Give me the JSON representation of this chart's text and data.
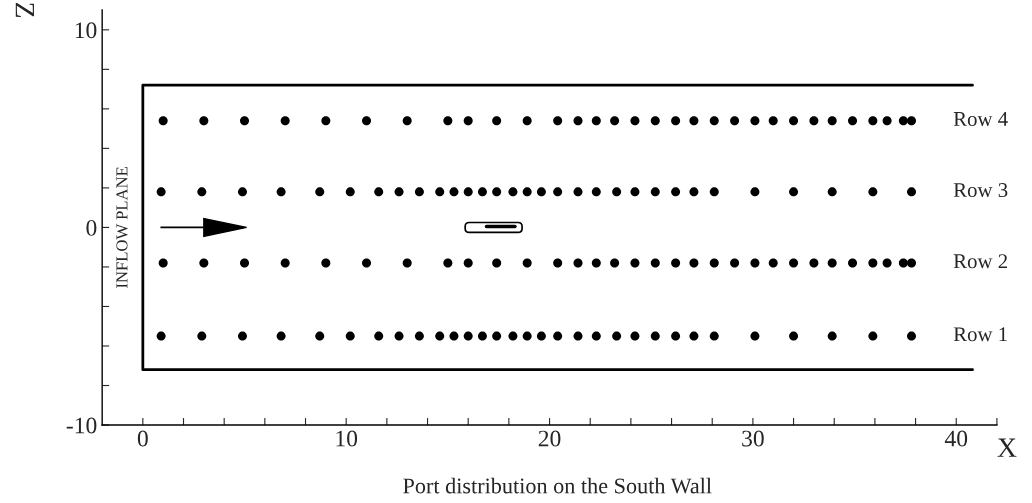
{
  "chart_data": {
    "type": "scatter",
    "xlabel": "X",
    "ylabel": "Z",
    "annotations": [
      "Port distribution on the South Wall",
      {
        "text": "INFLOW PLANE",
        "x": 0,
        "y": 0
      }
    ],
    "series": [
      {
        "name": "Row 4",
        "color": "#000000",
        "x": [
          1,
          3,
          5,
          7,
          9,
          11,
          13,
          15,
          16,
          17.4,
          18.9,
          20.4,
          21.4,
          22.3,
          23.2,
          24.2,
          25.2,
          26.2,
          27.1,
          28.1,
          29.1,
          30.1,
          31.0,
          32.0,
          33.0,
          33.9,
          34.9,
          35.9,
          36.6,
          37.4,
          37.8
        ],
        "values": [
          5.4,
          5.4,
          5.4,
          5.4,
          5.4,
          5.4,
          5.4,
          5.4,
          5.4,
          5.4,
          5.4,
          5.4,
          5.4,
          5.4,
          5.4,
          5.4,
          5.4,
          5.4,
          5.4,
          5.4,
          5.4,
          5.4,
          5.4,
          5.4,
          5.4,
          5.4,
          5.4,
          5.4,
          5.4,
          5.4,
          5.4
        ]
      },
      {
        "name": "Row 3",
        "color": "#000000",
        "x": [
          0.9,
          2.9,
          4.9,
          6.8,
          8.7,
          10.2,
          11.6,
          12.6,
          13.6,
          14.6,
          15.3,
          16.0,
          16.7,
          17.4,
          18.2,
          18.9,
          19.6,
          20.4,
          21.4,
          22.3,
          23.3,
          24.2,
          25.2,
          26.2,
          27.1,
          28.1,
          30.1,
          32.0,
          33.9,
          35.9,
          37.8
        ],
        "values": [
          1.8,
          1.8,
          1.8,
          1.8,
          1.8,
          1.8,
          1.8,
          1.8,
          1.8,
          1.8,
          1.8,
          1.8,
          1.8,
          1.8,
          1.8,
          1.8,
          1.8,
          1.8,
          1.8,
          1.8,
          1.8,
          1.8,
          1.8,
          1.8,
          1.8,
          1.8,
          1.8,
          1.8,
          1.8,
          1.8,
          1.8
        ]
      },
      {
        "name": "Row 2",
        "color": "#000000",
        "x": [
          1,
          3,
          5,
          7,
          9,
          11,
          13,
          15,
          16,
          17.4,
          18.9,
          20.4,
          21.4,
          22.3,
          23.2,
          24.2,
          25.2,
          26.2,
          27.1,
          28.1,
          29.1,
          30.1,
          31.0,
          32.0,
          33.0,
          33.9,
          34.9,
          35.9,
          36.6,
          37.4,
          37.8
        ],
        "values": [
          -1.8,
          -1.8,
          -1.8,
          -1.8,
          -1.8,
          -1.8,
          -1.8,
          -1.8,
          -1.8,
          -1.8,
          -1.8,
          -1.8,
          -1.8,
          -1.8,
          -1.8,
          -1.8,
          -1.8,
          -1.8,
          -1.8,
          -1.8,
          -1.8,
          -1.8,
          -1.8,
          -1.8,
          -1.8,
          -1.8,
          -1.8,
          -1.8,
          -1.8,
          -1.8,
          -1.8
        ]
      },
      {
        "name": "Row 1",
        "color": "#000000",
        "x": [
          0.9,
          2.9,
          4.9,
          6.8,
          8.7,
          10.2,
          11.6,
          12.6,
          13.6,
          14.6,
          15.3,
          16.0,
          16.7,
          17.4,
          18.2,
          18.9,
          19.6,
          20.4,
          21.4,
          22.3,
          23.3,
          24.2,
          25.2,
          26.2,
          27.1,
          28.1,
          30.1,
          32.0,
          33.9,
          35.9,
          37.8
        ],
        "values": [
          -5.5,
          -5.5,
          -5.5,
          -5.5,
          -5.5,
          -5.5,
          -5.5,
          -5.5,
          -5.5,
          -5.5,
          -5.5,
          -5.5,
          -5.5,
          -5.5,
          -5.5,
          -5.5,
          -5.5,
          -5.5,
          -5.5,
          -5.5,
          -5.5,
          -5.5,
          -5.5,
          -5.5,
          -5.5,
          -5.5,
          -5.5,
          -5.5,
          -5.5,
          -5.5,
          -5.5
        ]
      },
      {
        "type": "line",
        "marker": "none",
        "color": "#000000",
        "x": [
          40.8,
          0,
          0,
          40.8
        ],
        "values": [
          7.2,
          7.2,
          -7.2,
          -7.2
        ]
      }
    ],
    "marker": "circle",
    "xlim": [
      -2,
      42
    ],
    "ylim": [
      -10,
      11
    ],
    "xticks": [
      0,
      {
        "value": 2,
        "label": null
      },
      {
        "value": 4,
        "label": null
      },
      {
        "value": 6,
        "label": null
      },
      {
        "value": 8,
        "label": null
      },
      10,
      {
        "value": 12,
        "label": null
      },
      {
        "value": 14,
        "label": null
      },
      {
        "value": 16,
        "label": null
      },
      {
        "value": 18,
        "label": null
      },
      20,
      {
        "value": 22,
        "label": null
      },
      {
        "value": 24,
        "label": null
      },
      {
        "value": 26,
        "label": null
      },
      {
        "value": 28,
        "label": null
      },
      30,
      {
        "value": 32,
        "label": null
      },
      {
        "value": 34,
        "label": null
      },
      {
        "value": 36,
        "label": null
      },
      {
        "value": 38,
        "label": null
      },
      40,
      {
        "value": 42,
        "label": null
      }
    ],
    "yticks": [
      -10,
      {
        "value": -8,
        "label": null
      },
      {
        "value": -6,
        "label": null
      },
      {
        "value": -4,
        "label": null
      },
      {
        "value": -2,
        "label": null
      },
      0,
      {
        "value": 2,
        "label": null
      },
      {
        "value": 4,
        "label": null
      },
      {
        "value": 6,
        "label": null
      },
      {
        "value": 8,
        "label": null
      },
      10
    ],
    "grid": false,
    "legend": false
  }
}
